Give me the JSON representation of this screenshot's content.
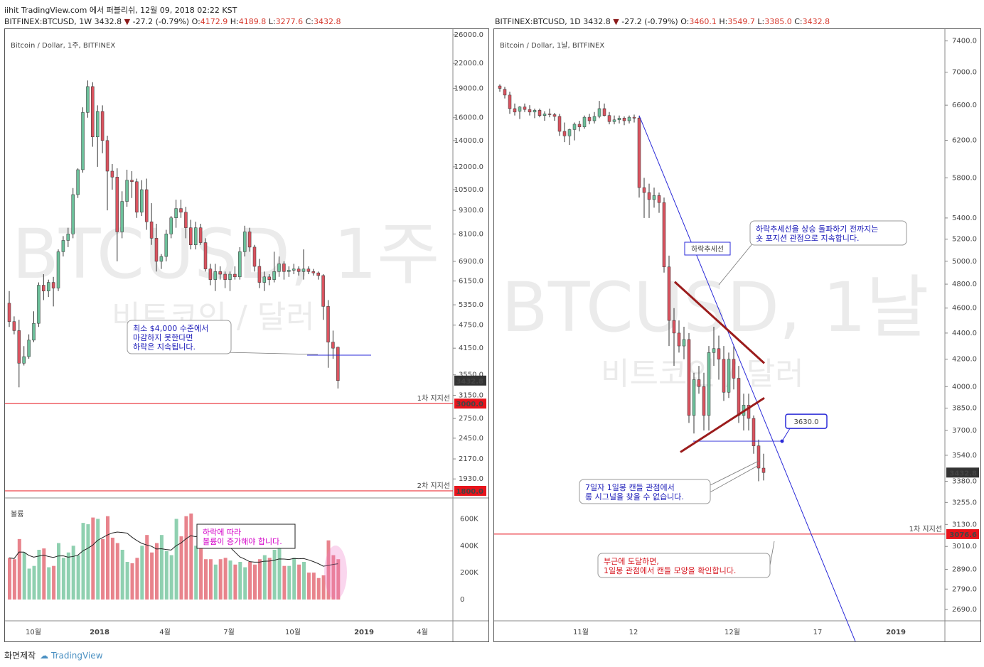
{
  "header": {
    "title": "iihit TradingView.com 에서 퍼블리쉬, 12월 09, 2018 02:22 KST"
  },
  "left": {
    "symbol_line": {
      "sym": "BITFINEX:BTCUSD, 1W 3432.8",
      "arrow": "▼",
      "chg": "-27.2 (-0.79%)",
      "o_label": "O:",
      "o": "4172.9",
      "h_label": "H:",
      "h": "4189.8",
      "l_label": "L:",
      "l": "3277.6",
      "c_label": "C:",
      "c": "3432.8"
    },
    "legend": "Bitcoin / Dollar, 1주, BITFINEX",
    "watermark": "BTCUSD, 1주",
    "watermark_sub": "비트코인 / 달러",
    "price_ticks": [
      "26000.0",
      "22000.0",
      "19000.0",
      "16000.0",
      "14000.0",
      "12000.0",
      "10500.0",
      "9300.0",
      "8100.0",
      "6900.0",
      "6150.0",
      "5350.0",
      "4750.0",
      "4150.0",
      "3550.0",
      "3150.0",
      "2750.0",
      "2450.0",
      "2170.0",
      "1930.0"
    ],
    "last_price": "3432.8",
    "support1": {
      "label": "1차 지지선",
      "price": "3000.0"
    },
    "support2": {
      "label": "2차 지지선",
      "price": "1800.0"
    },
    "note1": [
      "최소 $4,000 수준에서",
      "마감하지 못한다면",
      "하락은 지속됩니다."
    ],
    "volume": {
      "label": "볼륨",
      "ticks": [
        "600K",
        "400K",
        "200K",
        "0"
      ],
      "note": [
        "하락에 따라",
        "볼륨이 증가해야 합니다."
      ]
    },
    "time_ticks": [
      "10월",
      "2018",
      "4월",
      "7월",
      "10월",
      "2019",
      "4월"
    ]
  },
  "right": {
    "symbol_line": {
      "sym": "BITFINEX:BTCUSD, 1D 3432.8",
      "arrow": "▼",
      "chg": "-27.2 (-0.79%)",
      "o_label": "O:",
      "o": "3460.1",
      "h_label": "H:",
      "h": "3549.7",
      "l_label": "L:",
      "l": "3385.0",
      "c_label": "C:",
      "c": "3432.8"
    },
    "legend": "Bitcoin / Dollar, 1날, BITFINEX",
    "watermark": "BTCUSD, 1날",
    "watermark_sub": "비트코인 / 달러",
    "price_ticks": [
      "7400.0",
      "7000.0",
      "6600.0",
      "6200.0",
      "5800.0",
      "5400.0",
      "5200.0",
      "5000.0",
      "4800.0",
      "4600.0",
      "4400.0",
      "4200.0",
      "4000.0",
      "3850.0",
      "3700.0",
      "3540.0",
      "3380.0",
      "3255.0",
      "3130.0",
      "3010.0",
      "2890.0",
      "2790.0",
      "2690.0"
    ],
    "last_price": "3432.8",
    "support1": {
      "label": "1차 지지선",
      "price": "3076.6"
    },
    "trend_label": "하락추세선",
    "note_top": [
      "하락추세선을 상승 돌파하기 전까지는",
      "숏 포지션 관점으로 지속합니다."
    ],
    "callout": "3630.0",
    "note_mid": [
      "7일자 1일봉 캔들 관점에서",
      "롱 시그널을 찾을 수 없습니다."
    ],
    "note_bottom": [
      "부근에 도달하면,",
      "1일봉 관점에서 캔들 모양을 확인합니다."
    ],
    "time_ticks": [
      "11월",
      "12",
      "12월",
      "17",
      "2019"
    ]
  },
  "footer": {
    "left": "화면제작",
    "brand": "TradingView"
  },
  "colors": {
    "up": "#6cbf9a",
    "down": "#d9535f",
    "support": "#e8131b",
    "trend": "#2a2ad8",
    "triangle": "#9b1c1c"
  },
  "chart_data": [
    {
      "type": "candlestick",
      "title": "Bitcoin / Dollar, 1주, BITFINEX",
      "yscale": "log",
      "ylim": [
        1800,
        26000
      ],
      "series": [
        {
          "values": [
            [
              5400,
              5800,
              4700,
              4850
            ],
            [
              4850,
              5000,
              4500,
              4600
            ],
            [
              4600,
              4900,
              3300,
              3800
            ],
            [
              3800,
              4200,
              3750,
              3950
            ],
            [
              3950,
              4500,
              3900,
              4350
            ],
            [
              4350,
              5150,
              4300,
              4800
            ],
            [
              4800,
              6100,
              4700,
              6000
            ],
            [
              6000,
              6400,
              5500,
              5800
            ],
            [
              5800,
              6200,
              5600,
              6100
            ],
            [
              6100,
              6300,
              5300,
              5900
            ],
            [
              5900,
              7400,
              5800,
              7300
            ],
            [
              7300,
              8000,
              7100,
              7800
            ],
            [
              7800,
              8400,
              7500,
              8100
            ],
            [
              8100,
              10600,
              7900,
              10200
            ],
            [
              10200,
              11900,
              10000,
              11800
            ],
            [
              11800,
              17000,
              11600,
              16500
            ],
            [
              16500,
              19900,
              16000,
              19200
            ],
            [
              19200,
              19700,
              13500,
              14300
            ],
            [
              14300,
              17200,
              12000,
              16600
            ],
            [
              16600,
              17200,
              13000,
              14000
            ],
            [
              14000,
              14400,
              9300,
              11700
            ],
            [
              11700,
              12200,
              10500,
              11300
            ],
            [
              11300,
              11900,
              6900,
              8200
            ],
            [
              8200,
              10400,
              7900,
              9800
            ],
            [
              9800,
              11800,
              9500,
              11100
            ],
            [
              11100,
              11700,
              10000,
              11000
            ],
            [
              11000,
              11200,
              8900,
              9200
            ],
            [
              9200,
              11100,
              9000,
              10500
            ],
            [
              10500,
              11200,
              8300,
              8700
            ],
            [
              8700,
              9700,
              7600,
              7900
            ],
            [
              7900,
              8600,
              6500,
              6900
            ],
            [
              6900,
              7200,
              6600,
              7100
            ],
            [
              7100,
              8300,
              6900,
              8100
            ],
            [
              8100,
              9000,
              7900,
              8900
            ],
            [
              8900,
              9900,
              8400,
              9400
            ],
            [
              9400,
              9900,
              8900,
              9200
            ],
            [
              9200,
              9500,
              7900,
              8400
            ],
            [
              8400,
              8800,
              7400,
              7600
            ],
            [
              7600,
              8700,
              7400,
              8400
            ],
            [
              8400,
              8600,
              7600,
              7700
            ],
            [
              7700,
              7900,
              6500,
              6600
            ],
            [
              6600,
              6800,
              6000,
              6200
            ],
            [
              6200,
              6800,
              5800,
              6500
            ],
            [
              6500,
              6700,
              6200,
              6400
            ],
            [
              6400,
              6500,
              5900,
              6200
            ],
            [
              6200,
              6500,
              5800,
              6400
            ],
            [
              6400,
              6700,
              6200,
              6300
            ],
            [
              6300,
              7500,
              6200,
              7300
            ],
            [
              7300,
              8500,
              7100,
              8200
            ],
            [
              8200,
              8400,
              7300,
              7500
            ],
            [
              7500,
              7600,
              6500,
              6700
            ],
            [
              6700,
              7000,
              5900,
              6100
            ],
            [
              6100,
              6500,
              5800,
              6300
            ],
            [
              6300,
              6400,
              6000,
              6200
            ],
            [
              6200,
              7300,
              6100,
              6500
            ],
            [
              6500,
              7100,
              6300,
              6800
            ],
            [
              6800,
              6900,
              6200,
              6500
            ],
            [
              6500,
              6700,
              6300,
              6550
            ],
            [
              6550,
              6800,
              6400,
              6600
            ],
            [
              6600,
              6700,
              6350,
              6500
            ],
            [
              6500,
              7400,
              6200,
              6600
            ],
            [
              6600,
              6700,
              6400,
              6500
            ],
            [
              6500,
              6600,
              6350,
              6450
            ],
            [
              6450,
              6500,
              6200,
              6350
            ],
            [
              6350,
              6400,
              4900,
              5300
            ],
            [
              5300,
              5500,
              3700,
              4300
            ],
            [
              4300,
              4600,
              3900,
              4150
            ],
            [
              4172.9,
              4189.8,
              3277.6,
              3432.8
            ]
          ]
        }
      ],
      "support_lines": [
        3000,
        1800
      ]
    },
    {
      "type": "bar",
      "title": "볼륨",
      "ylim": [
        0,
        650000
      ],
      "series": [
        {
          "name": "볼륨",
          "values": [
            310000,
            300000,
            450000,
            350000,
            230000,
            250000,
            370000,
            380000,
            240000,
            250000,
            420000,
            310000,
            350000,
            400000,
            330000,
            570000,
            560000,
            610000,
            600000,
            450000,
            620000,
            460000,
            420000,
            370000,
            280000,
            270000,
            310000,
            400000,
            480000,
            350000,
            420000,
            480000,
            360000,
            330000,
            600000,
            470000,
            620000,
            640000,
            400000,
            470000,
            300000,
            300000,
            260000,
            300000,
            310000,
            290000,
            260000,
            280000,
            240000,
            280000,
            260000,
            300000,
            330000,
            310000,
            370000,
            390000,
            250000,
            250000,
            310000,
            260000,
            280000,
            200000,
            200000,
            160000,
            180000,
            440000,
            330000,
            300000
          ]
        }
      ]
    },
    {
      "type": "candlestick",
      "title": "Bitcoin / Dollar, 1날, BITFINEX",
      "yscale": "log",
      "ylim": [
        2640,
        7500
      ],
      "series": [
        {
          "values": [
            [
              6830,
              6850,
              6760,
              6800
            ],
            [
              6790,
              6820,
              6680,
              6720
            ],
            [
              6720,
              6760,
              6500,
              6560
            ],
            [
              6560,
              6620,
              6480,
              6520
            ],
            [
              6530,
              6590,
              6440,
              6580
            ],
            [
              6580,
              6620,
              6520,
              6550
            ],
            [
              6550,
              6600,
              6480,
              6520
            ],
            [
              6520,
              6560,
              6450,
              6540
            ],
            [
              6540,
              6560,
              6460,
              6480
            ],
            [
              6480,
              6530,
              6420,
              6500
            ],
            [
              6500,
              6560,
              6460,
              6490
            ],
            [
              6490,
              6510,
              6420,
              6470
            ],
            [
              6470,
              6500,
              6250,
              6300
            ],
            [
              6300,
              6400,
              6180,
              6250
            ],
            [
              6250,
              6330,
              6150,
              6320
            ],
            [
              6320,
              6400,
              6200,
              6380
            ],
            [
              6380,
              6420,
              6300,
              6350
            ],
            [
              6350,
              6480,
              6330,
              6460
            ],
            [
              6460,
              6500,
              6380,
              6420
            ],
            [
              6420,
              6520,
              6390,
              6470
            ],
            [
              6470,
              6650,
              6450,
              6560
            ],
            [
              6560,
              6620,
              6470,
              6480
            ],
            [
              6480,
              6520,
              6380,
              6410
            ],
            [
              6410,
              6480,
              6380,
              6430
            ],
            [
              6430,
              6480,
              6390,
              6450
            ],
            [
              6450,
              6470,
              6370,
              6420
            ],
            [
              6420,
              6480,
              6390,
              6460
            ],
            [
              6460,
              6490,
              6400,
              6450
            ],
            [
              6450,
              6470,
              5600,
              5700
            ],
            [
              5700,
              5800,
              5400,
              5650
            ],
            [
              5650,
              5740,
              5400,
              5580
            ],
            [
              5580,
              5700,
              5500,
              5620
            ],
            [
              5620,
              5650,
              5450,
              5550
            ],
            [
              5550,
              5600,
              4900,
              4950
            ],
            [
              4950,
              5050,
              4300,
              4500
            ],
            [
              4500,
              4600,
              4150,
              4400
            ],
            [
              4400,
              4500,
              4250,
              4300
            ],
            [
              4300,
              4450,
              4200,
              4350
            ],
            [
              4350,
              4400,
              3750,
              3800
            ],
            [
              3800,
              4100,
              3680,
              4050
            ],
            [
              4050,
              4150,
              3950,
              4000
            ],
            [
              4000,
              4100,
              3700,
              3800
            ],
            [
              3800,
              4300,
              3700,
              4250
            ],
            [
              4250,
              4450,
              4150,
              4280
            ],
            [
              4280,
              4380,
              4050,
              4200
            ],
            [
              4200,
              4300,
              3900,
              3960
            ],
            [
              3960,
              4250,
              3920,
              4200
            ],
            [
              4200,
              4300,
              3980,
              4060
            ],
            [
              4060,
              4150,
              3750,
              3800
            ],
            [
              3800,
              3950,
              3700,
              3870
            ],
            [
              3870,
              3950,
              3700,
              3780
            ],
            [
              3780,
              3800,
              3550,
              3600
            ],
            [
              3600,
              3640,
              3380,
              3460
            ],
            [
              3460,
              3549.7,
              3385,
              3432.8
            ]
          ]
        }
      ],
      "support_lines": [
        3076.6,
        3630.0
      ]
    }
  ]
}
